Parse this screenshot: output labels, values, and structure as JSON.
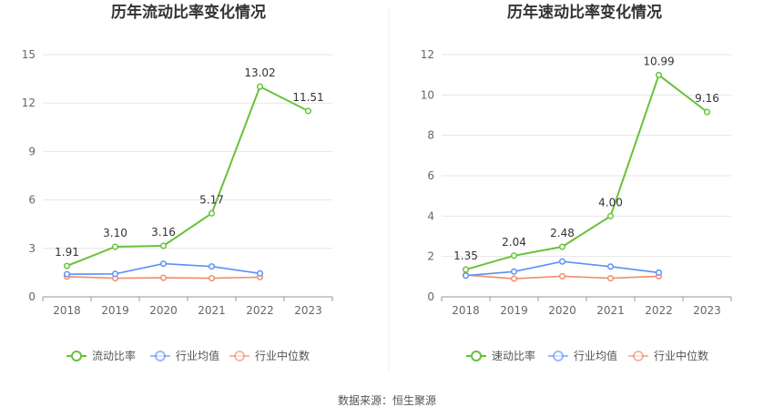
{
  "colors": {
    "primary": "#67c23a",
    "industry_avg": "#5b8ff9",
    "industry_median": "#f08c6b",
    "grid": "#e6e6e6",
    "axis": "#999999"
  },
  "source_text": "数据来源：恒生聚源",
  "chart_data": [
    {
      "type": "line",
      "title": "历年流动比率变化情况",
      "categories": [
        "2018",
        "2019",
        "2020",
        "2021",
        "2022",
        "2023"
      ],
      "ylim": [
        0,
        15
      ],
      "yticks": [
        0,
        3,
        6,
        9,
        12,
        15
      ],
      "grid": true,
      "legend_position": "bottom",
      "series": [
        {
          "name": "流动比率",
          "color": "#67c23a",
          "values": [
            1.91,
            3.1,
            3.16,
            5.17,
            13.02,
            11.51
          ],
          "labels": [
            "1.91",
            "3.10",
            "3.16",
            "5.17",
            "13.02",
            "11.51"
          ]
        },
        {
          "name": "行业均值",
          "color": "#5b8ff9",
          "values": [
            1.4,
            1.42,
            2.05,
            1.88,
            1.45,
            null
          ]
        },
        {
          "name": "行业中位数",
          "color": "#f08c6b",
          "values": [
            1.25,
            1.15,
            1.18,
            1.15,
            1.22,
            null
          ]
        }
      ]
    },
    {
      "type": "line",
      "title": "历年速动比率变化情况",
      "categories": [
        "2018",
        "2019",
        "2020",
        "2021",
        "2022",
        "2023"
      ],
      "ylim": [
        0,
        12
      ],
      "yticks": [
        0,
        2,
        4,
        6,
        8,
        10,
        12
      ],
      "grid": true,
      "legend_position": "bottom",
      "series": [
        {
          "name": "速动比率",
          "color": "#67c23a",
          "values": [
            1.35,
            2.04,
            2.48,
            4.0,
            10.99,
            9.16
          ],
          "labels": [
            "1.35",
            "2.04",
            "2.48",
            "4.00",
            "10.99",
            "9.16"
          ]
        },
        {
          "name": "行业均值",
          "color": "#5b8ff9",
          "values": [
            1.05,
            1.25,
            1.75,
            1.5,
            1.2,
            null
          ]
        },
        {
          "name": "行业中位数",
          "color": "#f08c6b",
          "values": [
            1.08,
            0.9,
            1.02,
            0.92,
            1.02,
            null
          ]
        }
      ]
    }
  ]
}
